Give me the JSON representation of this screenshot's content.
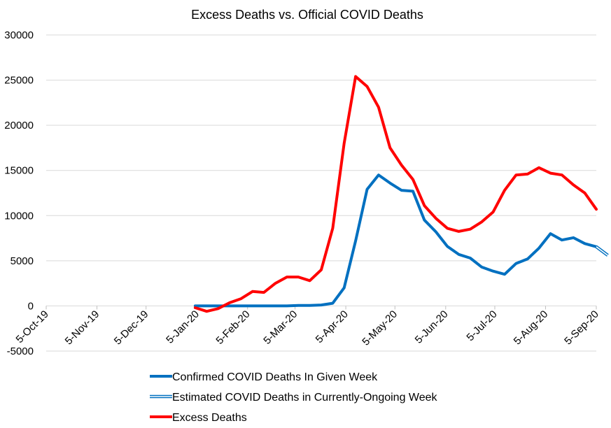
{
  "chart_data": {
    "type": "line",
    "title": "Excess Deaths vs. Official COVID Deaths",
    "xlabel": "",
    "ylabel": "",
    "ylim": [
      -5000,
      30000
    ],
    "yticks": [
      30000,
      25000,
      20000,
      15000,
      10000,
      5000,
      0,
      -5000
    ],
    "xrange": [
      "2019-10-05",
      "2020-09-05"
    ],
    "xticks": [
      {
        "date": "2019-10-05",
        "label": "5-Oct-19"
      },
      {
        "date": "2019-11-05",
        "label": "5-Nov-19"
      },
      {
        "date": "2019-12-05",
        "label": "5-Dec-19"
      },
      {
        "date": "2020-01-05",
        "label": "5-Jan-20"
      },
      {
        "date": "2020-02-05",
        "label": "5-Feb-20"
      },
      {
        "date": "2020-03-05",
        "label": "5-Mar-20"
      },
      {
        "date": "2020-04-05",
        "label": "5-Apr-20"
      },
      {
        "date": "2020-05-05",
        "label": "5-May-20"
      },
      {
        "date": "2020-06-05",
        "label": "5-Jun-20"
      },
      {
        "date": "2020-07-05",
        "label": "5-Jul-20"
      },
      {
        "date": "2020-08-05",
        "label": "5-Aug-20"
      },
      {
        "date": "2020-09-05",
        "label": "5-Sep-20"
      }
    ],
    "grid": "horizontal",
    "legend": "bottom",
    "series": [
      {
        "name": "Confirmed COVID Deaths In Given Week",
        "color": "#0070C0",
        "style": "solid",
        "points": [
          [
            "2020-01-04",
            0
          ],
          [
            "2020-01-11",
            0
          ],
          [
            "2020-01-18",
            0
          ],
          [
            "2020-01-25",
            0
          ],
          [
            "2020-02-01",
            0
          ],
          [
            "2020-02-08",
            0
          ],
          [
            "2020-02-15",
            0
          ],
          [
            "2020-02-22",
            0
          ],
          [
            "2020-02-29",
            0
          ],
          [
            "2020-03-07",
            50
          ],
          [
            "2020-03-14",
            60
          ],
          [
            "2020-03-21",
            100
          ],
          [
            "2020-03-28",
            300
          ],
          [
            "2020-04-04",
            2000
          ],
          [
            "2020-04-11",
            7200
          ],
          [
            "2020-04-18",
            12900
          ],
          [
            "2020-04-25",
            14500
          ],
          [
            "2020-05-02",
            13600
          ],
          [
            "2020-05-09",
            12800
          ],
          [
            "2020-05-16",
            12700
          ],
          [
            "2020-05-23",
            9500
          ],
          [
            "2020-05-30",
            8200
          ],
          [
            "2020-06-06",
            6600
          ],
          [
            "2020-06-13",
            5700
          ],
          [
            "2020-06-20",
            5300
          ],
          [
            "2020-06-27",
            4300
          ],
          [
            "2020-07-04",
            3850
          ],
          [
            "2020-07-11",
            3500
          ],
          [
            "2020-07-18",
            4700
          ],
          [
            "2020-07-25",
            5200
          ],
          [
            "2020-08-01",
            6400
          ],
          [
            "2020-08-08",
            8000
          ],
          [
            "2020-08-15",
            7300
          ],
          [
            "2020-08-22",
            7550
          ],
          [
            "2020-08-29",
            6900
          ],
          [
            "2020-09-05",
            6550
          ]
        ]
      },
      {
        "name": "Estimated COVID Deaths in Currently-Ongoing Week",
        "color": "#0070C0",
        "style": "double",
        "points": [
          [
            "2020-09-05",
            6550
          ],
          [
            "2020-09-12",
            5600
          ]
        ]
      },
      {
        "name": "Excess Deaths",
        "color": "#FF0000",
        "style": "solid",
        "points": [
          [
            "2020-01-04",
            -200
          ],
          [
            "2020-01-11",
            -600
          ],
          [
            "2020-01-18",
            -300
          ],
          [
            "2020-01-25",
            350
          ],
          [
            "2020-02-01",
            800
          ],
          [
            "2020-02-08",
            1600
          ],
          [
            "2020-02-15",
            1500
          ],
          [
            "2020-02-22",
            2500
          ],
          [
            "2020-02-29",
            3200
          ],
          [
            "2020-03-07",
            3200
          ],
          [
            "2020-03-14",
            2800
          ],
          [
            "2020-03-21",
            4000
          ],
          [
            "2020-03-28",
            8600
          ],
          [
            "2020-04-04",
            18000
          ],
          [
            "2020-04-11",
            25400
          ],
          [
            "2020-04-18",
            24300
          ],
          [
            "2020-04-25",
            22000
          ],
          [
            "2020-05-02",
            17500
          ],
          [
            "2020-05-09",
            15600
          ],
          [
            "2020-05-16",
            14000
          ],
          [
            "2020-05-23",
            11100
          ],
          [
            "2020-05-30",
            9700
          ],
          [
            "2020-06-06",
            8600
          ],
          [
            "2020-06-13",
            8250
          ],
          [
            "2020-06-20",
            8500
          ],
          [
            "2020-06-27",
            9300
          ],
          [
            "2020-07-04",
            10400
          ],
          [
            "2020-07-11",
            12800
          ],
          [
            "2020-07-18",
            14500
          ],
          [
            "2020-07-25",
            14600
          ],
          [
            "2020-08-01",
            15300
          ],
          [
            "2020-08-08",
            14700
          ],
          [
            "2020-08-15",
            14500
          ],
          [
            "2020-08-22",
            13400
          ],
          [
            "2020-08-29",
            12500
          ],
          [
            "2020-09-05",
            10700
          ]
        ]
      }
    ]
  }
}
